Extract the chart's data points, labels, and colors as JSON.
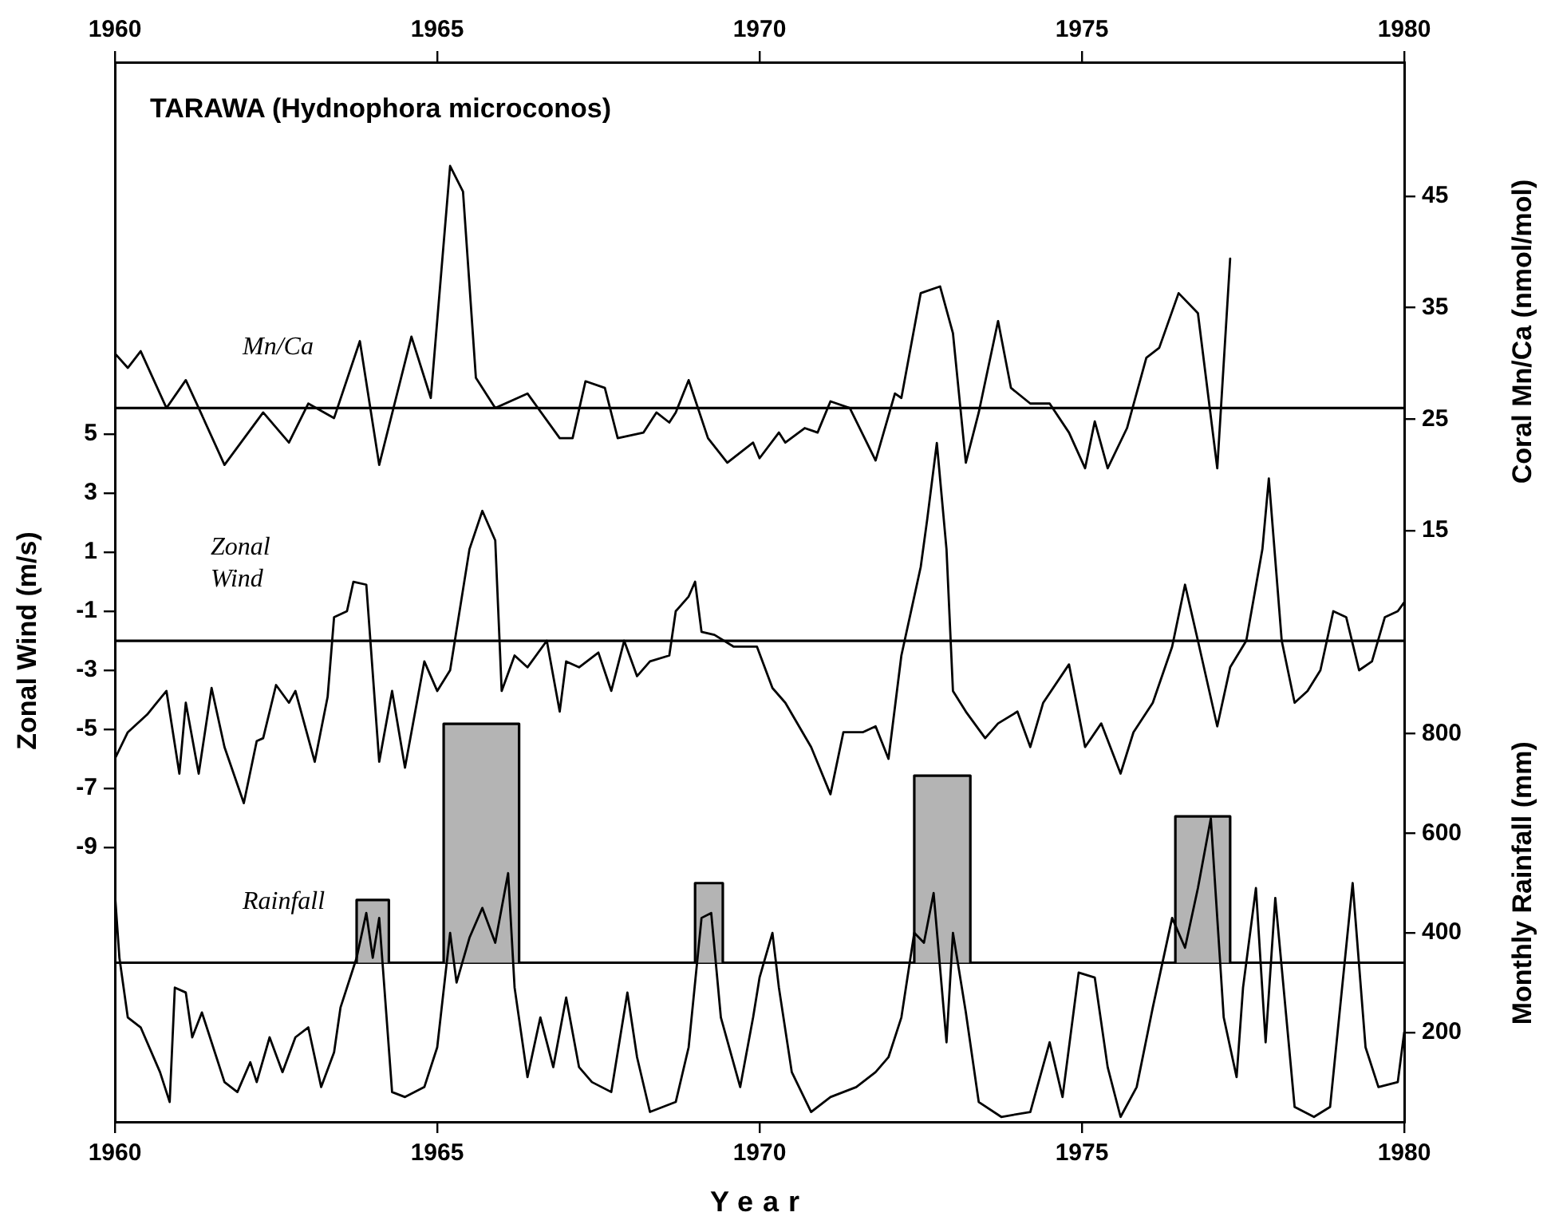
{
  "chart_data": {
    "type": "line",
    "title": "TARAWA (Hydnophora microconos)",
    "xlabel": "Year",
    "ylabel": "Zonal Wind (m/s)",
    "y2label": "Coral Mn/Ca (nmol/mol)",
    "y3label": "Monthly Rainfall (mm)",
    "xlim": [
      1960,
      1980
    ],
    "xticks": [
      1960,
      1965,
      1970,
      1975,
      1980
    ],
    "x2lim": [
      1960,
      1980
    ],
    "x2ticks": [
      1960,
      1965,
      1970,
      1975,
      1980
    ],
    "ylim": [
      -18.3,
      17.6
    ],
    "yticks": [
      5,
      3,
      1,
      -1,
      -3,
      -5,
      -7,
      -9
    ],
    "y2lim": [
      -38,
      57
    ],
    "y2ticks": [
      15,
      25,
      35,
      45
    ],
    "y3lim": [
      20,
      2150
    ],
    "y3ticks": [
      200,
      400,
      600,
      800
    ],
    "marker": "none",
    "line_style": "solid",
    "ref_lines": [
      {
        "axis": "y2",
        "value": 26
      },
      {
        "axis": "y",
        "value": -2
      },
      {
        "axis": "y3",
        "value": 340
      }
    ],
    "series": [
      {
        "name": "Mn/Ca",
        "axis": "y2",
        "color": "#000000",
        "x": [
          1960.0,
          1960.2,
          1960.4,
          1960.8,
          1961.1,
          1961.3,
          1961.7,
          1962.3,
          1962.7,
          1963.0,
          1963.4,
          1963.8,
          1964.1,
          1964.6,
          1964.9,
          1965.2,
          1965.4,
          1965.6,
          1965.9,
          1966.4,
          1966.9,
          1967.1,
          1967.3,
          1967.6,
          1967.8,
          1968.2,
          1968.4,
          1968.6,
          1968.7,
          1968.9,
          1969.2,
          1969.5,
          1969.9,
          1970.0,
          1970.3,
          1970.4,
          1970.7,
          1970.9,
          1971.1,
          1971.4,
          1971.8,
          1972.1,
          1972.2,
          1972.5,
          1972.8,
          1973.0,
          1973.2,
          1973.4,
          1973.7,
          1973.9,
          1974.2,
          1974.5,
          1974.8,
          1975.05,
          1975.2,
          1975.4,
          1975.7,
          1976.0,
          1976.2,
          1976.5,
          1976.8,
          1977.1,
          1977.3
        ],
        "values": [
          30.9,
          29.6,
          31.1,
          26,
          28.5,
          26,
          20.9,
          25.6,
          22.9,
          26.4,
          25.1,
          32,
          20.9,
          32.4,
          26.9,
          47.7,
          45.4,
          28.7,
          26,
          27.3,
          23.3,
          23.3,
          28.4,
          27.8,
          23.3,
          23.8,
          25.6,
          24.7,
          25.6,
          28.5,
          23.3,
          21.1,
          22.9,
          21.5,
          23.8,
          22.9,
          24.2,
          23.8,
          26.6,
          26,
          21.3,
          27.3,
          26.9,
          36.3,
          36.9,
          32.7,
          21.1,
          25.6,
          33.8,
          27.8,
          26.4,
          26.4,
          23.8,
          20.6,
          24.8,
          20.6,
          24.2,
          30.5,
          31.4,
          36.3,
          34.5,
          20.6,
          39.4
        ]
      },
      {
        "name": "Zonal Wind",
        "axis": "y",
        "color": "#000000",
        "x": [
          1960.0,
          1960.2,
          1960.5,
          1960.65,
          1960.8,
          1960.9,
          1961.0,
          1961.1,
          1961.3,
          1961.5,
          1961.7,
          1962.0,
          1962.2,
          1962.3,
          1962.5,
          1962.7,
          1962.8,
          1963.1,
          1963.3,
          1963.4,
          1963.6,
          1963.7,
          1963.9,
          1964.1,
          1964.3,
          1964.5,
          1964.8,
          1965.0,
          1965.2,
          1965.5,
          1965.7,
          1965.9,
          1966.0,
          1966.2,
          1966.4,
          1966.7,
          1966.9,
          1967.0,
          1967.2,
          1967.5,
          1967.7,
          1967.9,
          1968.1,
          1968.3,
          1968.6,
          1968.7,
          1968.9,
          1969.0,
          1969.1,
          1969.3,
          1969.6,
          1969.96,
          1970.2,
          1970.4,
          1970.8,
          1971.1,
          1971.3,
          1971.6,
          1971.8,
          1972.0,
          1972.2,
          1972.5,
          1972.6,
          1972.75,
          1972.9,
          1973.0,
          1973.2,
          1973.5,
          1973.7,
          1974.0,
          1974.2,
          1974.4,
          1974.8,
          1975.05,
          1975.3,
          1975.6,
          1975.8,
          1976.1,
          1976.4,
          1976.6,
          1976.8,
          1977.1,
          1977.3,
          1977.55,
          1977.8,
          1977.9,
          1978.1,
          1978.3,
          1978.5,
          1978.7,
          1978.9,
          1979.1,
          1979.3,
          1979.5,
          1979.7,
          1979.9,
          1980.0
        ],
        "values": [
          -6.0,
          -5.1,
          -4.5,
          -4.1,
          -3.7,
          -5.1,
          -6.5,
          -4.1,
          -6.5,
          -3.6,
          -5.6,
          -7.5,
          -5.4,
          -5.3,
          -3.5,
          -4.1,
          -3.7,
          -6.1,
          -3.9,
          -1.2,
          -1.0,
          0.0,
          -0.1,
          -6.1,
          -3.7,
          -6.3,
          -2.7,
          -3.7,
          -3.0,
          1.1,
          2.4,
          1.4,
          -3.7,
          -2.5,
          -2.9,
          -2.0,
          -4.4,
          -2.7,
          -2.9,
          -2.4,
          -3.7,
          -2.0,
          -3.2,
          -2.7,
          -2.5,
          -1.0,
          -0.5,
          0.0,
          -1.7,
          -1.8,
          -2.2,
          -2.2,
          -3.6,
          -4.1,
          -5.6,
          -7.2,
          -5.1,
          -5.1,
          -4.9,
          -6.0,
          -2.5,
          0.5,
          2.1,
          4.7,
          1.1,
          -3.7,
          -4.4,
          -5.3,
          -4.8,
          -4.4,
          -5.6,
          -4.1,
          -2.8,
          -5.6,
          -4.8,
          -6.5,
          -5.1,
          -4.1,
          -2.2,
          -0.1,
          -2.0,
          -4.9,
          -2.9,
          -2.0,
          1.1,
          3.5,
          -2.0,
          -4.1,
          -3.7,
          -3.0,
          -1.0,
          -1.2,
          -3.0,
          -2.7,
          -1.2,
          -1.0,
          -0.7
        ]
      },
      {
        "type": "area",
        "axis": "y3",
        "color": "#b4b4b4",
        "x": [
          1963.75,
          1963.75,
          1964.25,
          1964.25
        ],
        "values": [
          340,
          466,
          466,
          340
        ]
      },
      {
        "type": "area",
        "axis": "y3",
        "color": "#b4b4b4",
        "x": [
          1965.1,
          1965.1,
          1966.27,
          1966.27
        ],
        "values": [
          340,
          820,
          820,
          340
        ]
      },
      {
        "type": "area",
        "axis": "y3",
        "color": "#b4b4b4",
        "x": [
          1969.0,
          1969.0,
          1969.43,
          1969.43
        ],
        "values": [
          340,
          500,
          500,
          340
        ]
      },
      {
        "type": "area",
        "axis": "y3",
        "color": "#b4b4b4",
        "x": [
          1972.4,
          1972.4,
          1973.27,
          1973.27
        ],
        "values": [
          340,
          716,
          716,
          340
        ]
      },
      {
        "type": "area",
        "axis": "y3",
        "color": "#b4b4b4",
        "x": [
          1976.45,
          1976.45,
          1977.3,
          1977.3
        ],
        "values": [
          340,
          634,
          634,
          340
        ]
      },
      {
        "name": "Rainfall",
        "axis": "y3",
        "color": "#000000",
        "x": [
          1960.0,
          1960.07,
          1960.2,
          1960.4,
          1960.7,
          1960.85,
          1960.93,
          1961.1,
          1961.2,
          1961.35,
          1961.5,
          1961.7,
          1961.9,
          1962.1,
          1962.2,
          1962.4,
          1962.6,
          1962.8,
          1963.0,
          1963.2,
          1963.4,
          1963.5,
          1963.75,
          1963.9,
          1964.0,
          1964.1,
          1964.3,
          1964.5,
          1964.8,
          1965.0,
          1965.2,
          1965.3,
          1965.5,
          1965.7,
          1965.9,
          1966.1,
          1966.2,
          1966.4,
          1966.6,
          1966.8,
          1967.0,
          1967.2,
          1967.4,
          1967.7,
          1967.95,
          1968.1,
          1968.3,
          1968.7,
          1968.9,
          1969.1,
          1969.25,
          1969.4,
          1969.7,
          1969.9,
          1970.0,
          1970.2,
          1970.3,
          1970.5,
          1970.8,
          1971.1,
          1971.5,
          1971.8,
          1972.0,
          1972.2,
          1972.4,
          1972.55,
          1972.7,
          1972.9,
          1973.0,
          1973.2,
          1973.4,
          1973.75,
          1974.2,
          1974.5,
          1974.7,
          1974.95,
          1975.2,
          1975.4,
          1975.6,
          1975.85,
          1976.1,
          1976.4,
          1976.6,
          1976.8,
          1977.0,
          1977.2,
          1977.4,
          1977.5,
          1977.7,
          1977.85,
          1978.0,
          1978.3,
          1978.6,
          1978.85,
          1979.2,
          1979.4,
          1979.6,
          1979.9,
          1980.0
        ],
        "values": [
          480,
          350,
          230,
          210,
          120,
          60,
          290,
          280,
          190,
          240,
          180,
          100,
          80,
          140,
          100,
          190,
          120,
          190,
          210,
          90,
          160,
          250,
          350,
          440,
          350,
          430,
          80,
          70,
          90,
          170,
          400,
          300,
          390,
          450,
          380,
          520,
          290,
          110,
          230,
          130,
          270,
          130,
          100,
          80,
          280,
          150,
          40,
          60,
          170,
          430,
          440,
          230,
          90,
          230,
          310,
          400,
          290,
          120,
          40,
          70,
          90,
          120,
          150,
          230,
          400,
          380,
          480,
          180,
          400,
          240,
          60,
          30,
          40,
          180,
          70,
          320,
          310,
          130,
          30,
          90,
          250,
          430,
          370,
          490,
          630,
          230,
          110,
          290,
          490,
          180,
          470,
          50,
          30,
          50,
          500,
          170,
          90,
          100,
          200
        ]
      }
    ]
  }
}
